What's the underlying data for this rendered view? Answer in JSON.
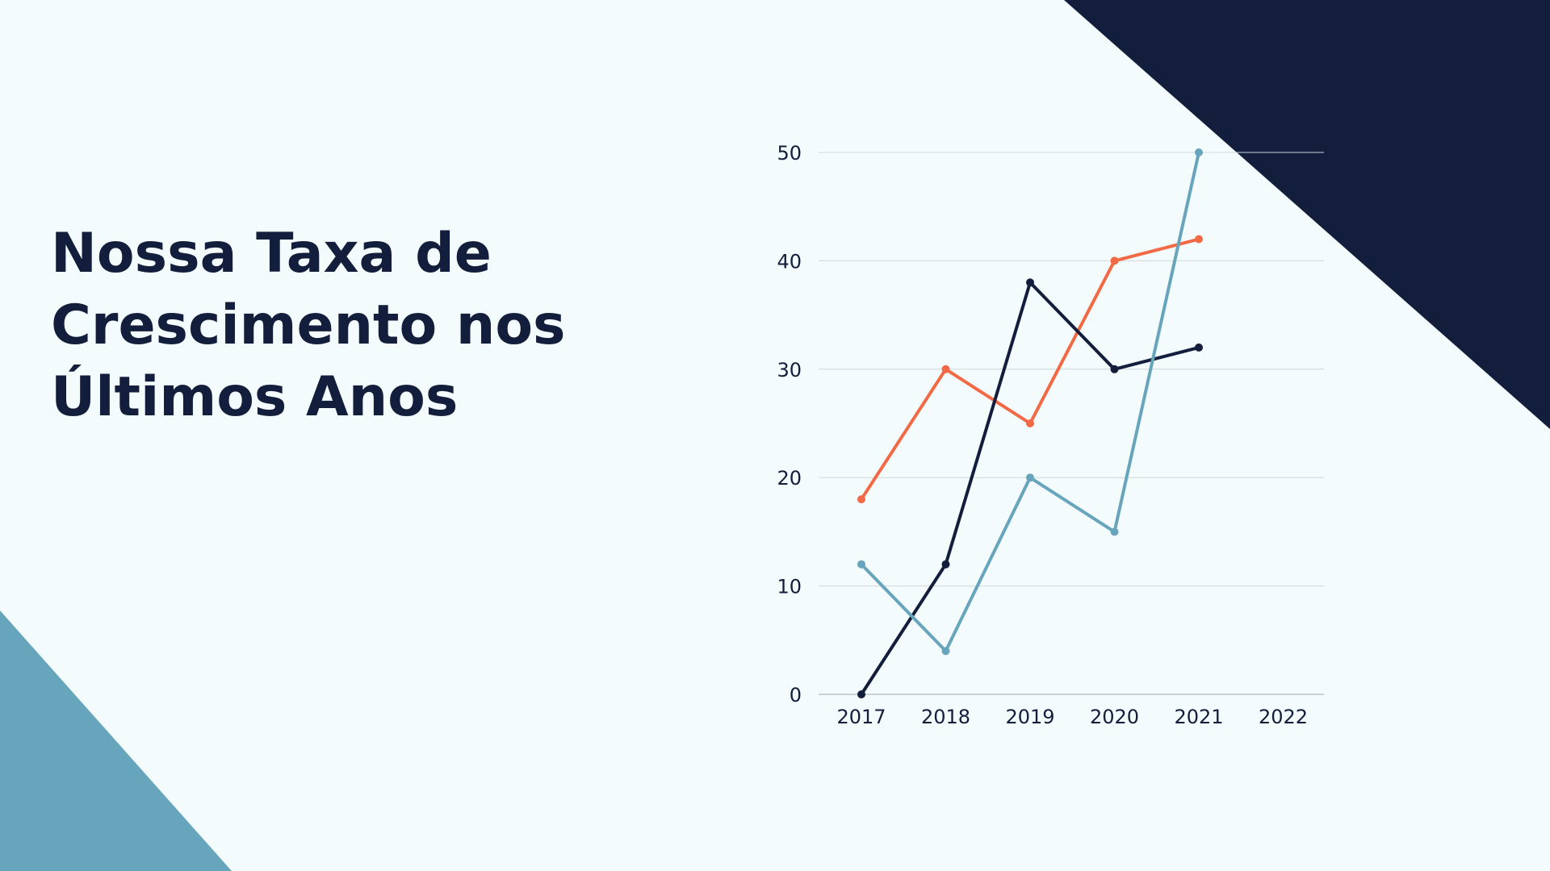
{
  "title": "Nossa Taxa de Crescimento nos Últimos Anos",
  "colors": {
    "background": "#f4fbfc",
    "navy": "#131d3c",
    "teal": "#67a5bd",
    "orange": "#f26a45",
    "grid": "#cfd8dc"
  },
  "chart_data": {
    "type": "line",
    "title": "",
    "xlabel": "",
    "ylabel": "",
    "categories": [
      "2017",
      "2018",
      "2019",
      "2020",
      "2021",
      "2022"
    ],
    "y_ticks": [
      "0",
      "10",
      "20",
      "30",
      "40",
      "50"
    ],
    "ylim": [
      0,
      50
    ],
    "grid": true,
    "legend": "none",
    "series": [
      {
        "color": "#f26a45",
        "values": [
          18,
          30,
          25,
          40,
          42,
          null
        ]
      },
      {
        "color": "#131d3c",
        "values": [
          0,
          12,
          38,
          30,
          32,
          null
        ]
      },
      {
        "color": "#67a5bd",
        "values": [
          12,
          4,
          20,
          15,
          50,
          null
        ]
      }
    ]
  }
}
